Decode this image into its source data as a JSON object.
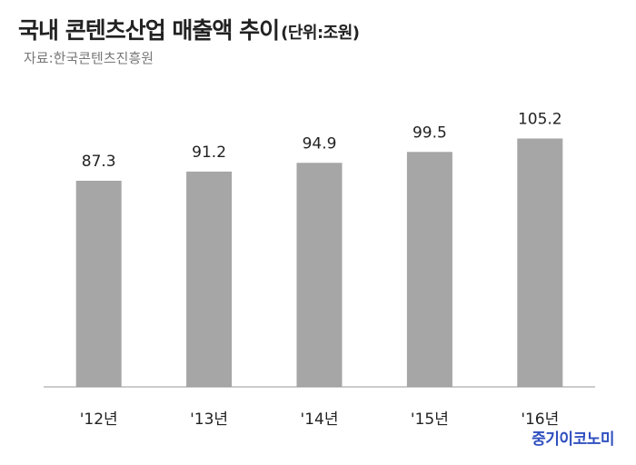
{
  "header": {
    "title": "국내 콘텐츠산업 매출액 추이",
    "unit": "(단위:조원)",
    "source": "자료:한국콘텐츠진흥원"
  },
  "brand": "중기이코노미",
  "colors": {
    "bar": "#a6a6a6",
    "axis": "#9a9a9a",
    "label": "#222222",
    "brand": "#2f4fbf"
  },
  "chart_data": {
    "type": "bar",
    "categories": [
      "'12년",
      "'13년",
      "'14년",
      "'15년",
      "'16년"
    ],
    "values": [
      87.3,
      91.2,
      94.9,
      99.5,
      105.2
    ],
    "data_labels": [
      "87.3",
      "91.2",
      "94.9",
      "99.5",
      "105.2"
    ],
    "ylim": [
      0,
      115
    ],
    "grid": false,
    "legend": "none"
  }
}
